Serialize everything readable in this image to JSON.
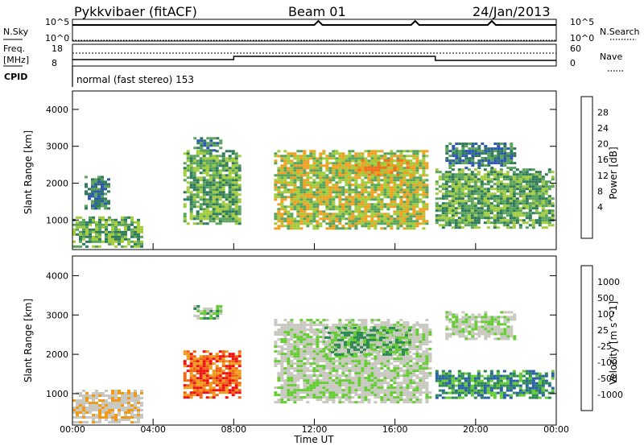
{
  "header": {
    "radar": "Pykkvibaer (fitACF)",
    "beam": "Beam 01",
    "date": "24/Jan/2013"
  },
  "strips": {
    "nsky_label": "N.Sky",
    "nsky_ticks": [
      "10^5",
      "10^0"
    ],
    "nsearch_label": "N.Search",
    "nsearch_ticks": [
      "10^5",
      "10^0"
    ],
    "freq_label_1": "Freq.",
    "freq_label_2": "[MHz]",
    "freq_ticks": [
      "18",
      "8"
    ],
    "nave_label": "Nave",
    "nave_ticks": [
      "60",
      "0"
    ],
    "cpid_label": "CPID",
    "cpid_text": "normal (fast stereo) 153"
  },
  "colors": {
    "power_scale": [
      "#1010e8",
      "#2d55b5",
      "#2f7a5a",
      "#5aa35a",
      "#a3cc3c",
      "#f0a020",
      "#f07020",
      "#f03010",
      "#e00000"
    ],
    "velocity_scale": [
      "#ee1111",
      "#ee6611",
      "#f09a1a",
      "#c8c8c0",
      "#c8c8c0",
      "#66cc33",
      "#2d8a55",
      "#2a60a8",
      "#1a3ab8"
    ],
    "ground_scatter": "#bebeb6"
  },
  "chart_data": [
    {
      "type": "heatmap",
      "title": "",
      "xlabel": "Time UT",
      "ylabel": "Slant Range [km]",
      "x_range_hours": [
        0,
        24
      ],
      "ylim_km": [
        200,
        4500
      ],
      "x_tick_labels": [
        "00:00",
        "04:00",
        "08:00",
        "12:00",
        "16:00",
        "20:00",
        "00:00"
      ],
      "y_tick_labels": [
        "1000",
        "2000",
        "3000",
        "4000"
      ],
      "colorbar": {
        "label": "Power [dB]",
        "ticks": [
          "28",
          "24",
          "20",
          "16",
          "12",
          "8",
          "4"
        ],
        "range": [
          0,
          32
        ]
      },
      "regions": [
        {
          "t0": 0.0,
          "t1": 3.5,
          "r0": 300,
          "r1": 1100,
          "level": 3
        },
        {
          "t0": 0.6,
          "t1": 1.8,
          "r0": 1300,
          "r1": 2200,
          "level": 2
        },
        {
          "t0": 5.5,
          "t1": 8.3,
          "r0": 900,
          "r1": 2900,
          "level": 3
        },
        {
          "t0": 6.0,
          "t1": 7.4,
          "r0": 2900,
          "r1": 3250,
          "level": 2
        },
        {
          "t0": 10.0,
          "t1": 17.6,
          "r0": 800,
          "r1": 2900,
          "level": 4
        },
        {
          "t0": 14.0,
          "t1": 16.8,
          "r0": 2200,
          "r1": 2650,
          "level": 5
        },
        {
          "t0": 18.0,
          "t1": 23.8,
          "r0": 800,
          "r1": 2400,
          "level": 3
        },
        {
          "t0": 18.5,
          "t1": 22.0,
          "r0": 2400,
          "r1": 3100,
          "level": 2
        }
      ]
    },
    {
      "type": "heatmap",
      "title": "",
      "xlabel": "Time UT",
      "ylabel": "Slant Range [km]",
      "x_range_hours": [
        0,
        24
      ],
      "ylim_km": [
        200,
        4500
      ],
      "x_tick_labels": [
        "00:00",
        "04:00",
        "08:00",
        "12:00",
        "16:00",
        "20:00",
        "00:00"
      ],
      "y_tick_labels": [
        "1000",
        "2000",
        "3000",
        "4000"
      ],
      "colorbar": {
        "label": "Velocity [m s^-1]",
        "ticks": [
          "1000",
          "500",
          "100",
          "25",
          "-25",
          "-100",
          "-500",
          "-1000"
        ],
        "range": [
          -1000,
          1000
        ]
      },
      "regions": [
        {
          "t0": 0.0,
          "t1": 3.5,
          "r0": 300,
          "r1": 1100,
          "level": 3
        },
        {
          "t0": 5.5,
          "t1": 8.3,
          "r0": 900,
          "r1": 2100,
          "level": 1
        },
        {
          "t0": 6.0,
          "t1": 7.4,
          "r0": 2900,
          "r1": 3250,
          "level": 5
        },
        {
          "t0": 10.0,
          "t1": 17.8,
          "r0": 800,
          "r1": 2900,
          "level": 4
        },
        {
          "t0": 12.5,
          "t1": 16.8,
          "r0": 2000,
          "r1": 2700,
          "level": 5
        },
        {
          "t0": 18.0,
          "t1": 23.8,
          "r0": 900,
          "r1": 1600,
          "level": 6
        },
        {
          "t0": 18.5,
          "t1": 22.0,
          "r0": 2400,
          "r1": 3100,
          "level": 4
        }
      ]
    }
  ]
}
